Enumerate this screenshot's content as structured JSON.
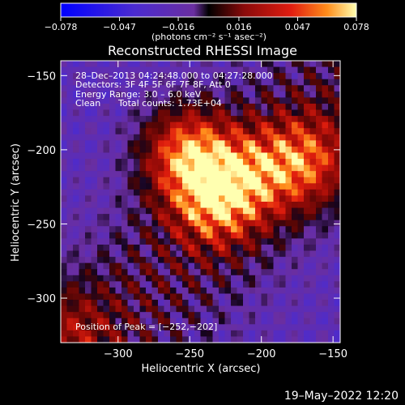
{
  "chart_data": {
    "type": "heatmap",
    "title": "Reconstructed RHESSI Image",
    "xlabel": "Heliocentric X (arcsec)",
    "ylabel": "Heliocentric Y (arcsec)",
    "xlim": [
      -340,
      -145
    ],
    "ylim": [
      -330,
      -140
    ],
    "xticks": [
      -300,
      -250,
      -200,
      -150
    ],
    "yticks": [
      -150,
      -200,
      -250,
      -300
    ],
    "xtick_labels": [
      "−300",
      "−250",
      "−200",
      "−150"
    ],
    "ytick_labels": [
      "−150",
      "−200",
      "−250",
      "−300"
    ],
    "colorbar": {
      "min": -0.078,
      "max": 0.078,
      "tick_values": [
        -0.078,
        -0.047,
        -0.016,
        0.016,
        0.047,
        0.078
      ],
      "tick_labels": [
        "−0.078",
        "−0.047",
        "−0.016",
        "0.016",
        "0.047",
        "0.078"
      ],
      "units": "(photons cm⁻² s⁻¹ asec⁻²)"
    },
    "annotations": {
      "time_range": "28–Dec–2013 04:24:48.000 to 04:27:28.000",
      "detectors": "Detectors: 3F 4F 5F 6F 7F 8F, Att 0",
      "energy": "Energy Range: 3.0 – 6.0 keV",
      "method": "Clean",
      "total_counts": "Total counts: 1.73E+04",
      "peak_position": "Position of Peak = [−252,−202]"
    },
    "peak": {
      "x": -252,
      "y": -202
    },
    "sources": [
      {
        "x": -252,
        "y": -202,
        "intensity": 0.078
      },
      {
        "x": -232,
        "y": -235,
        "intensity": 0.07
      },
      {
        "x": -168,
        "y": -208,
        "intensity": 0.06
      },
      {
        "x": -205,
        "y": -215,
        "intensity": 0.045
      }
    ],
    "colors": {
      "background": "#000000",
      "low": "#6a2ea0",
      "mid": "#d81e0e",
      "high": "#ffff9a"
    }
  },
  "footer": {
    "timestamp": "19–May–2022 12:20"
  }
}
